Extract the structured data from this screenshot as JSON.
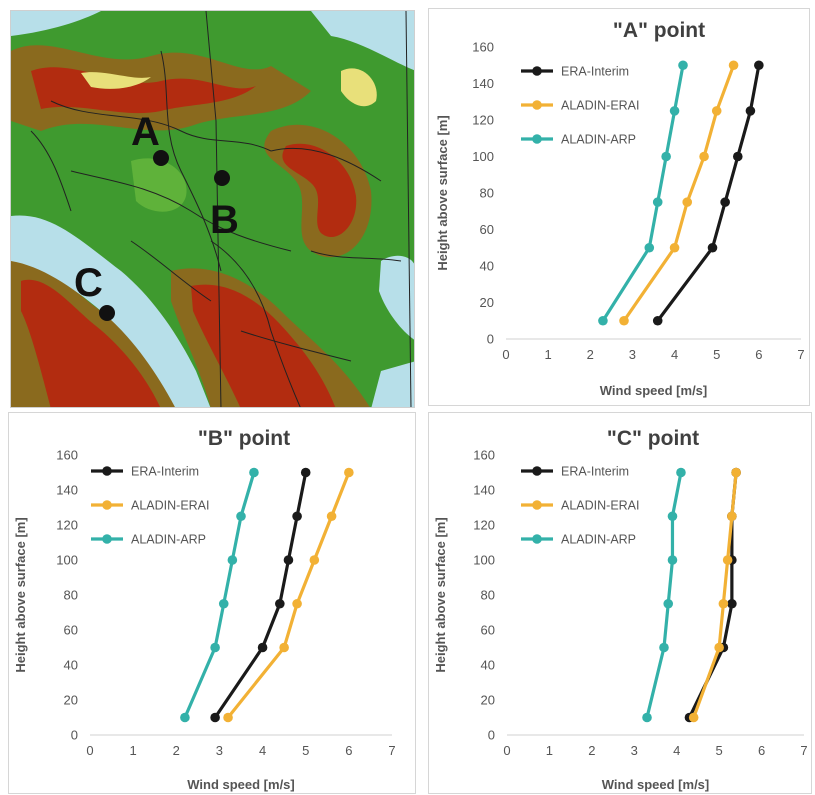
{
  "map": {
    "labels": [
      {
        "letter": "A"
      },
      {
        "letter": "B"
      },
      {
        "letter": "C"
      }
    ],
    "colors": {
      "sea": "#b7dfe9",
      "lowland": "#3f9a2f",
      "midland": "#8a6a1e",
      "highland": "#b22c10",
      "peak": "#e8e07a"
    }
  },
  "legend": [
    "ERA-Interim",
    "ALADIN-ERAI",
    "ALADIN-ARP"
  ],
  "series_colors": {
    "ERA-Interim": "#1a1a1a",
    "ALADIN-ERAI": "#f2b135",
    "ALADIN-ARP": "#33b1a9"
  },
  "chart_data": [
    {
      "type": "line",
      "title": "\"A\" point",
      "xlabel": "Wind speed [m/s]",
      "ylabel": "Height above surface [m]",
      "xlim": [
        0,
        7
      ],
      "ylim": [
        0,
        160
      ],
      "xticks": [
        "0",
        "1",
        "2",
        "3",
        "4",
        "5",
        "6",
        "7"
      ],
      "yticks": [
        "0",
        "20",
        "40",
        "60",
        "80",
        "100",
        "120",
        "140",
        "160"
      ],
      "legend_position": "top-left",
      "grid": false,
      "series": [
        {
          "name": "ERA-Interim",
          "x": [
            3.6,
            4.9,
            5.2,
            5.5,
            5.8,
            6.0
          ],
          "y": [
            10,
            50,
            75,
            100,
            125,
            150
          ]
        },
        {
          "name": "ALADIN-ERAI",
          "x": [
            2.8,
            4.0,
            4.3,
            4.7,
            5.0,
            5.4
          ],
          "y": [
            10,
            50,
            75,
            100,
            125,
            150
          ]
        },
        {
          "name": "ALADIN-ARP",
          "x": [
            2.3,
            3.4,
            3.6,
            3.8,
            4.0,
            4.2
          ],
          "y": [
            10,
            50,
            75,
            100,
            125,
            150
          ]
        }
      ]
    },
    {
      "type": "line",
      "title": "\"B\" point",
      "xlabel": "Wind speed [m/s]",
      "ylabel": "Height above surface [m]",
      "xlim": [
        0,
        7
      ],
      "ylim": [
        0,
        160
      ],
      "xticks": [
        "0",
        "1",
        "2",
        "3",
        "4",
        "5",
        "6",
        "7"
      ],
      "yticks": [
        "0",
        "20",
        "40",
        "60",
        "80",
        "100",
        "120",
        "140",
        "160"
      ],
      "legend_position": "top-left",
      "grid": false,
      "series": [
        {
          "name": "ERA-Interim",
          "x": [
            2.9,
            4.0,
            4.4,
            4.6,
            4.8,
            5.0
          ],
          "y": [
            10,
            50,
            75,
            100,
            125,
            150
          ]
        },
        {
          "name": "ALADIN-ERAI",
          "x": [
            3.2,
            4.5,
            4.8,
            5.2,
            5.6,
            6.0
          ],
          "y": [
            10,
            50,
            75,
            100,
            125,
            150
          ]
        },
        {
          "name": "ALADIN-ARP",
          "x": [
            2.2,
            2.9,
            3.1,
            3.3,
            3.5,
            3.8
          ],
          "y": [
            10,
            50,
            75,
            100,
            125,
            150
          ]
        }
      ]
    },
    {
      "type": "line",
      "title": "\"C\" point",
      "xlabel": "Wind speed [m/s]",
      "ylabel": "Height above surface [m]",
      "xlim": [
        0,
        7
      ],
      "ylim": [
        0,
        160
      ],
      "xticks": [
        "0",
        "1",
        "2",
        "3",
        "4",
        "5",
        "6",
        "7"
      ],
      "yticks": [
        "0",
        "20",
        "40",
        "60",
        "80",
        "100",
        "120",
        "140",
        "160"
      ],
      "legend_position": "top-left",
      "grid": false,
      "series": [
        {
          "name": "ERA-Interim",
          "x": [
            4.3,
            5.1,
            5.3,
            5.3,
            5.3,
            5.4
          ],
          "y": [
            10,
            50,
            75,
            100,
            125,
            150
          ]
        },
        {
          "name": "ALADIN-ERAI",
          "x": [
            4.4,
            5.0,
            5.1,
            5.2,
            5.3,
            5.4
          ],
          "y": [
            10,
            50,
            75,
            100,
            125,
            150
          ]
        },
        {
          "name": "ALADIN-ARP",
          "x": [
            3.3,
            3.7,
            3.8,
            3.9,
            3.9,
            4.1
          ],
          "y": [
            10,
            50,
            75,
            100,
            125,
            150
          ]
        }
      ]
    }
  ]
}
